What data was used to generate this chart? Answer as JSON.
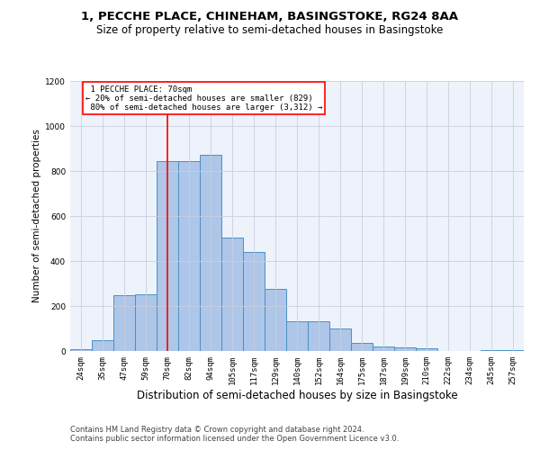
{
  "title": "1, PECCHE PLACE, CHINEHAM, BASINGSTOKE, RG24 8AA",
  "subtitle": "Size of property relative to semi-detached houses in Basingstoke",
  "xlabel": "Distribution of semi-detached houses by size in Basingstoke",
  "ylabel": "Number of semi-detached properties",
  "footer_line1": "Contains HM Land Registry data © Crown copyright and database right 2024.",
  "footer_line2": "Contains public sector information licensed under the Open Government Licence v3.0.",
  "categories": [
    "24sqm",
    "35sqm",
    "47sqm",
    "59sqm",
    "70sqm",
    "82sqm",
    "94sqm",
    "105sqm",
    "117sqm",
    "129sqm",
    "140sqm",
    "152sqm",
    "164sqm",
    "175sqm",
    "187sqm",
    "199sqm",
    "210sqm",
    "222sqm",
    "234sqm",
    "245sqm",
    "257sqm"
  ],
  "values": [
    10,
    50,
    248,
    252,
    843,
    843,
    872,
    505,
    440,
    278,
    133,
    133,
    102,
    38,
    20,
    15,
    12,
    2,
    0,
    3,
    5
  ],
  "bar_color": "#aec6e8",
  "bar_edge_color": "#4a90c4",
  "vline_color": "red",
  "vline_index": 4,
  "property_label": "1 PECCHE PLACE: 70sqm",
  "smaller_pct": 20,
  "smaller_count": 829,
  "larger_pct": 80,
  "larger_count": 3312,
  "ylim": [
    0,
    1200
  ],
  "yticks": [
    0,
    200,
    400,
    600,
    800,
    1000,
    1200
  ],
  "annotation_box_color": "white",
  "annotation_box_edge": "red",
  "bg_color": "#eef2fb",
  "grid_color": "#c8cfe0",
  "title_fontsize": 9.5,
  "subtitle_fontsize": 8.5,
  "xlabel_fontsize": 8.5,
  "ylabel_fontsize": 7.5,
  "tick_fontsize": 6.5,
  "annot_fontsize": 6.5,
  "footer_fontsize": 6.0
}
